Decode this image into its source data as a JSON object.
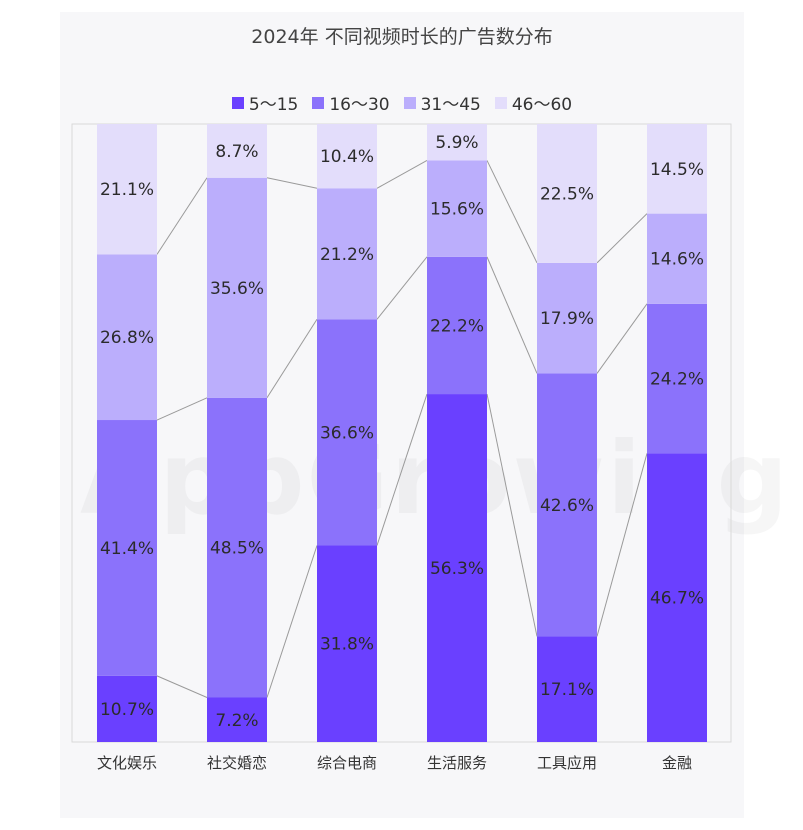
{
  "chart_data": {
    "type": "bar",
    "stacked": true,
    "normalized": true,
    "title": "2024年 不同视频时长的广告数分布",
    "categories": [
      "文化娱乐",
      "社交婚恋",
      "综合电商",
      "生活服务",
      "工具应用",
      "金融"
    ],
    "series": [
      {
        "name": "5～15",
        "color": "#6a40ff",
        "values": [
          10.7,
          7.2,
          31.8,
          56.3,
          17.1,
          46.7
        ]
      },
      {
        "name": "16～30",
        "color": "#8b72fb",
        "values": [
          41.4,
          48.5,
          36.6,
          22.2,
          42.6,
          24.2
        ]
      },
      {
        "name": "31～45",
        "color": "#bbaefc",
        "values": [
          26.8,
          35.6,
          21.2,
          15.6,
          17.9,
          14.6
        ]
      },
      {
        "name": "46～60",
        "color": "#e3ddfb",
        "values": [
          21.1,
          8.7,
          10.4,
          5.9,
          22.5,
          14.5
        ]
      }
    ],
    "unit": "%",
    "legend_position": "top",
    "connector_lines": true
  },
  "watermark": "AppGrowing"
}
